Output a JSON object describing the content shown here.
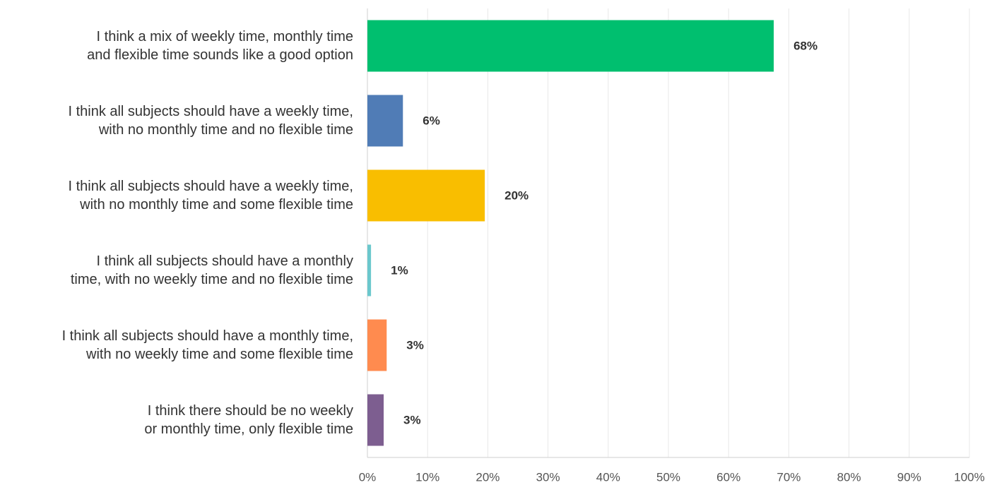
{
  "chart_data": {
    "type": "hbar",
    "categories": [
      "I think a mix of weekly time, monthly time\nand flexible time sounds like a good option",
      "I think all subjects should have a weekly time,\nwith no monthly time and no flexible time",
      "I think all subjects should have a weekly time,\nwith no monthly time and some flexible time",
      "I think all subjects should have a monthly\ntime, with no weekly time and no flexible time",
      "I think all subjects should have a monthly time,\nwith no weekly time and some flexible time",
      "I think there should be no weekly\nor monthly time, only flexible time"
    ],
    "values": [
      67.5,
      5.9,
      19.5,
      0.6,
      3.2,
      2.7
    ],
    "value_labels": [
      "68%",
      "6%",
      "20%",
      "1%",
      "3%",
      "3%"
    ],
    "colors": [
      "#00bf6f",
      "#507cb6",
      "#f9be00",
      "#6bc8cd",
      "#ff8b4f",
      "#7d5e90"
    ],
    "xlim": [
      0,
      100
    ],
    "xticks": [
      {
        "value": 0,
        "label": "0%"
      },
      {
        "value": 10,
        "label": "10%"
      },
      {
        "value": 20,
        "label": "20%"
      },
      {
        "value": 30,
        "label": "30%"
      },
      {
        "value": 40,
        "label": "40%"
      },
      {
        "value": 50,
        "label": "50%"
      },
      {
        "value": 60,
        "label": "60%"
      },
      {
        "value": 70,
        "label": "70%"
      },
      {
        "value": 80,
        "label": "80%"
      },
      {
        "value": 90,
        "label": "90%"
      },
      {
        "value": 100,
        "label": "100%"
      }
    ],
    "grid": true
  }
}
